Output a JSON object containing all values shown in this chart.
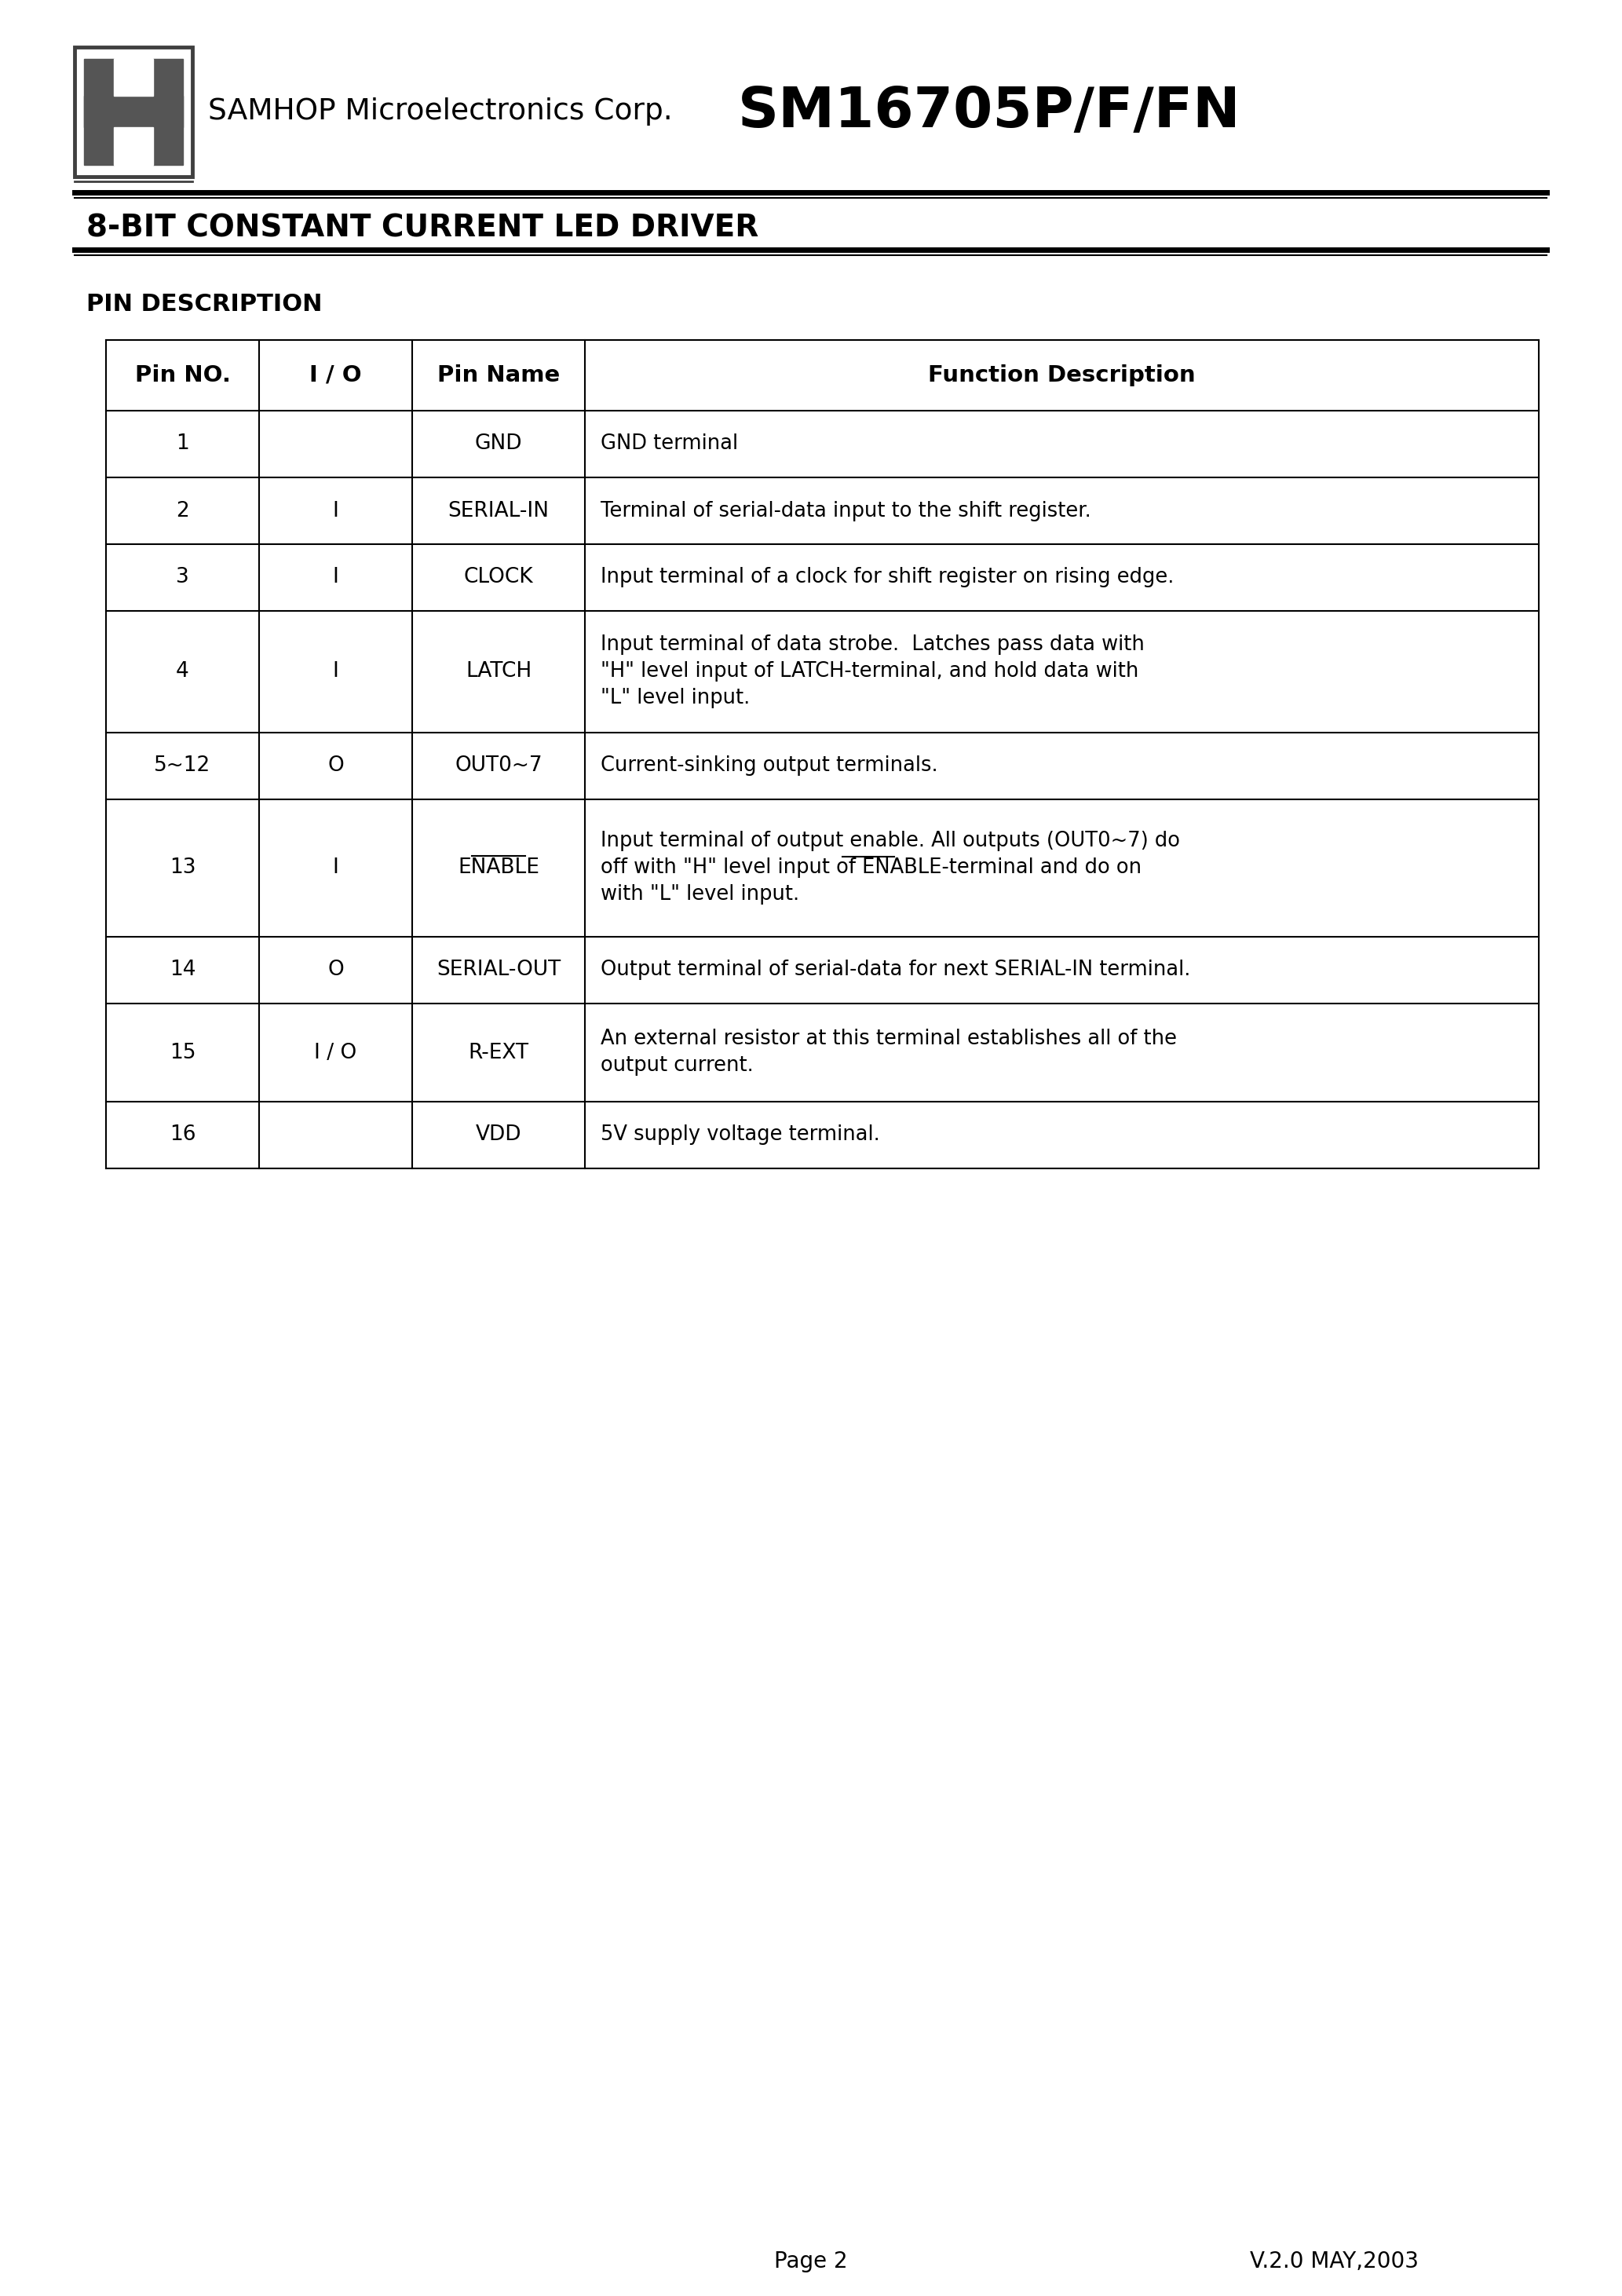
{
  "page_title": "SM16705P/F/FN",
  "company_name": "SAMHOP Microelectronics Corp.",
  "subtitle": "8-BIT CONSTANT CURRENT LED DRIVER",
  "section_title": "PIN DESCRIPTION",
  "page_number": "Page 2",
  "version": "V.2.0 MAY,2003",
  "table_headers": [
    "Pin NO.",
    "I / O",
    "Pin Name",
    "Function Description"
  ],
  "table_rows": [
    {
      "pin": "1",
      "io": "",
      "name": "GND",
      "desc": "GND terminal",
      "overline_name": false,
      "overline_desc_word": "",
      "multiline": false
    },
    {
      "pin": "2",
      "io": "I",
      "name": "SERIAL-IN",
      "desc": "Terminal of serial-data input to the shift register.",
      "overline_name": false,
      "overline_desc_word": "",
      "multiline": false
    },
    {
      "pin": "3",
      "io": "I",
      "name": "CLOCK",
      "desc": "Input terminal of a clock for shift register on rising edge.",
      "overline_name": false,
      "overline_desc_word": "",
      "multiline": false
    },
    {
      "pin": "4",
      "io": "I",
      "name": "LATCH",
      "desc": "Input terminal of data strobe.  Latches pass data with\n\"H\" level input of LATCH-terminal, and hold data with\n\"L\" level input.",
      "overline_name": false,
      "overline_desc_word": "",
      "multiline": true
    },
    {
      "pin": "5~12",
      "io": "O",
      "name": "OUT0~7",
      "desc": "Current-sinking output terminals.",
      "overline_name": false,
      "overline_desc_word": "",
      "multiline": false
    },
    {
      "pin": "13",
      "io": "I",
      "name": "ENABLE",
      "desc": "Input terminal of output enable. All outputs (OUT0~7) do\noff with \"H\" level input of ENABLE-terminal and do on\nwith \"L\" level input.",
      "overline_name": true,
      "overline_desc_word": "ENABLE",
      "multiline": true
    },
    {
      "pin": "14",
      "io": "O",
      "name": "SERIAL-OUT",
      "desc": "Output terminal of serial-data for next SERIAL-IN terminal.",
      "overline_name": false,
      "overline_desc_word": "",
      "multiline": false
    },
    {
      "pin": "15",
      "io": "I / O",
      "name": "R-EXT",
      "desc": "An external resistor at this terminal establishes all of the\noutput current.",
      "overline_name": false,
      "overline_desc_word": "",
      "multiline": true
    },
    {
      "pin": "16",
      "io": "",
      "name": "VDD",
      "desc": "5V supply voltage terminal.",
      "overline_name": false,
      "overline_desc_word": "",
      "multiline": false
    }
  ],
  "bg_color": "#ffffff",
  "logo_gray": "#555555",
  "logo_border": "#404040"
}
